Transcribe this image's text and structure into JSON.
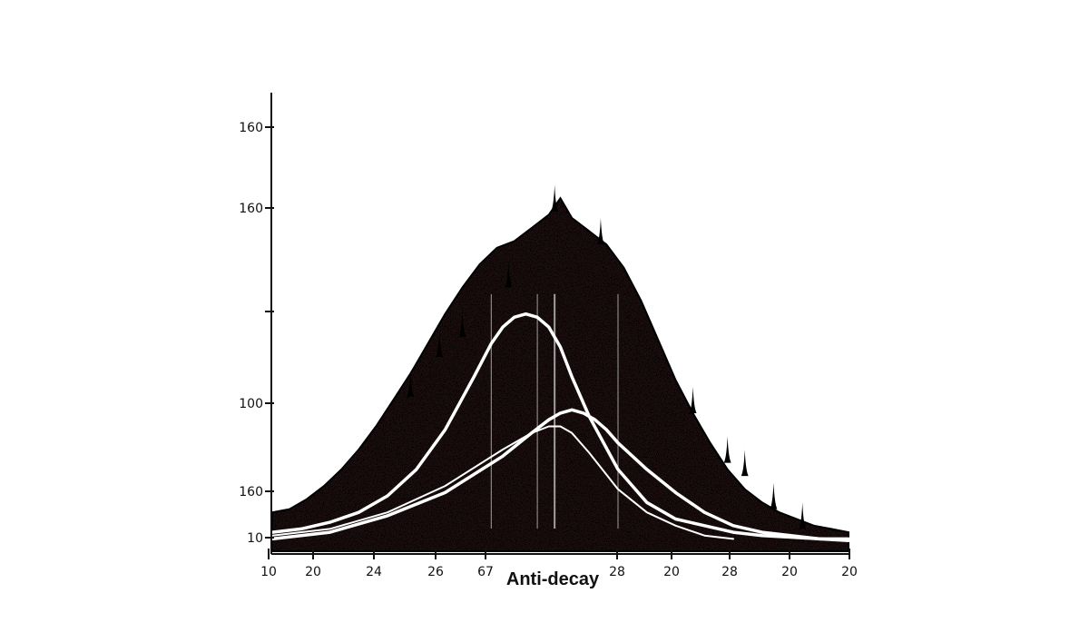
{
  "chart_data": {
    "type": "area",
    "title": "",
    "xlabel": "Anti-decay",
    "ylabel": "",
    "x_tick_labels": [
      "10",
      "20",
      "24",
      "26",
      "67",
      "28",
      "20",
      "28",
      "20",
      "20"
    ],
    "y_tick_labels": [
      "10",
      "160",
      "100",
      "",
      "160",
      "160"
    ],
    "xlim": [
      0,
      100
    ],
    "ylim": [
      0,
      100
    ],
    "grid": false,
    "legend": "none",
    "series": [
      {
        "style": "filled-black-noisy-area",
        "x": [
          0,
          3,
          6,
          9,
          12,
          15,
          18,
          21,
          24,
          27,
          30,
          33,
          36,
          39,
          42,
          45,
          48,
          50,
          52,
          55,
          58,
          61,
          64,
          67,
          70,
          73,
          76,
          79,
          82,
          85,
          88,
          91,
          94,
          97,
          100
        ],
        "values": [
          9,
          10,
          13,
          17,
          22,
          28,
          35,
          43,
          51,
          60,
          69,
          77,
          84,
          89,
          91,
          95,
          99,
          104,
          98,
          94,
          90,
          83,
          73,
          61,
          49,
          39,
          30,
          22,
          16,
          12,
          9,
          7,
          5,
          4,
          3
        ]
      },
      {
        "style": "white-curve",
        "x": [
          0,
          5,
          10,
          15,
          20,
          25,
          30,
          35,
          38,
          40,
          42,
          44,
          46,
          48,
          50,
          52,
          55,
          60,
          65,
          70,
          75,
          80,
          85,
          90,
          95,
          100
        ],
        "values": [
          3,
          4,
          6,
          9,
          14,
          22,
          34,
          50,
          60,
          65,
          68,
          69,
          68,
          65,
          59,
          50,
          38,
          22,
          12,
          7,
          5,
          3,
          2,
          1.5,
          1,
          1
        ]
      },
      {
        "style": "white-curve",
        "x": [
          0,
          10,
          20,
          30,
          40,
          45,
          48,
          50,
          52,
          54,
          56,
          58,
          60,
          65,
          70,
          75,
          80,
          85,
          90,
          95,
          100
        ],
        "values": [
          1,
          3,
          8,
          15,
          26,
          33,
          37,
          39,
          40,
          39,
          37,
          34,
          30,
          22,
          15,
          9,
          5,
          3,
          2,
          1,
          0.5
        ]
      },
      {
        "style": "white-curve-thin",
        "x": [
          0,
          10,
          20,
          30,
          40,
          45,
          48,
          50,
          52,
          55,
          60,
          65,
          70,
          75,
          80
        ],
        "values": [
          2,
          4,
          9,
          17,
          28,
          33,
          35,
          35,
          33,
          27,
          16,
          9,
          5,
          2,
          1
        ]
      }
    ],
    "spikes": [
      {
        "x": 49,
        "value": 108
      },
      {
        "x": 41,
        "value": 85
      },
      {
        "x": 33,
        "value": 70
      },
      {
        "x": 29,
        "value": 64
      },
      {
        "x": 24,
        "value": 52
      },
      {
        "x": 57,
        "value": 98
      },
      {
        "x": 73,
        "value": 47
      },
      {
        "x": 79,
        "value": 32
      },
      {
        "x": 82,
        "value": 28
      },
      {
        "x": 87,
        "value": 18
      },
      {
        "x": 92,
        "value": 12
      }
    ]
  }
}
